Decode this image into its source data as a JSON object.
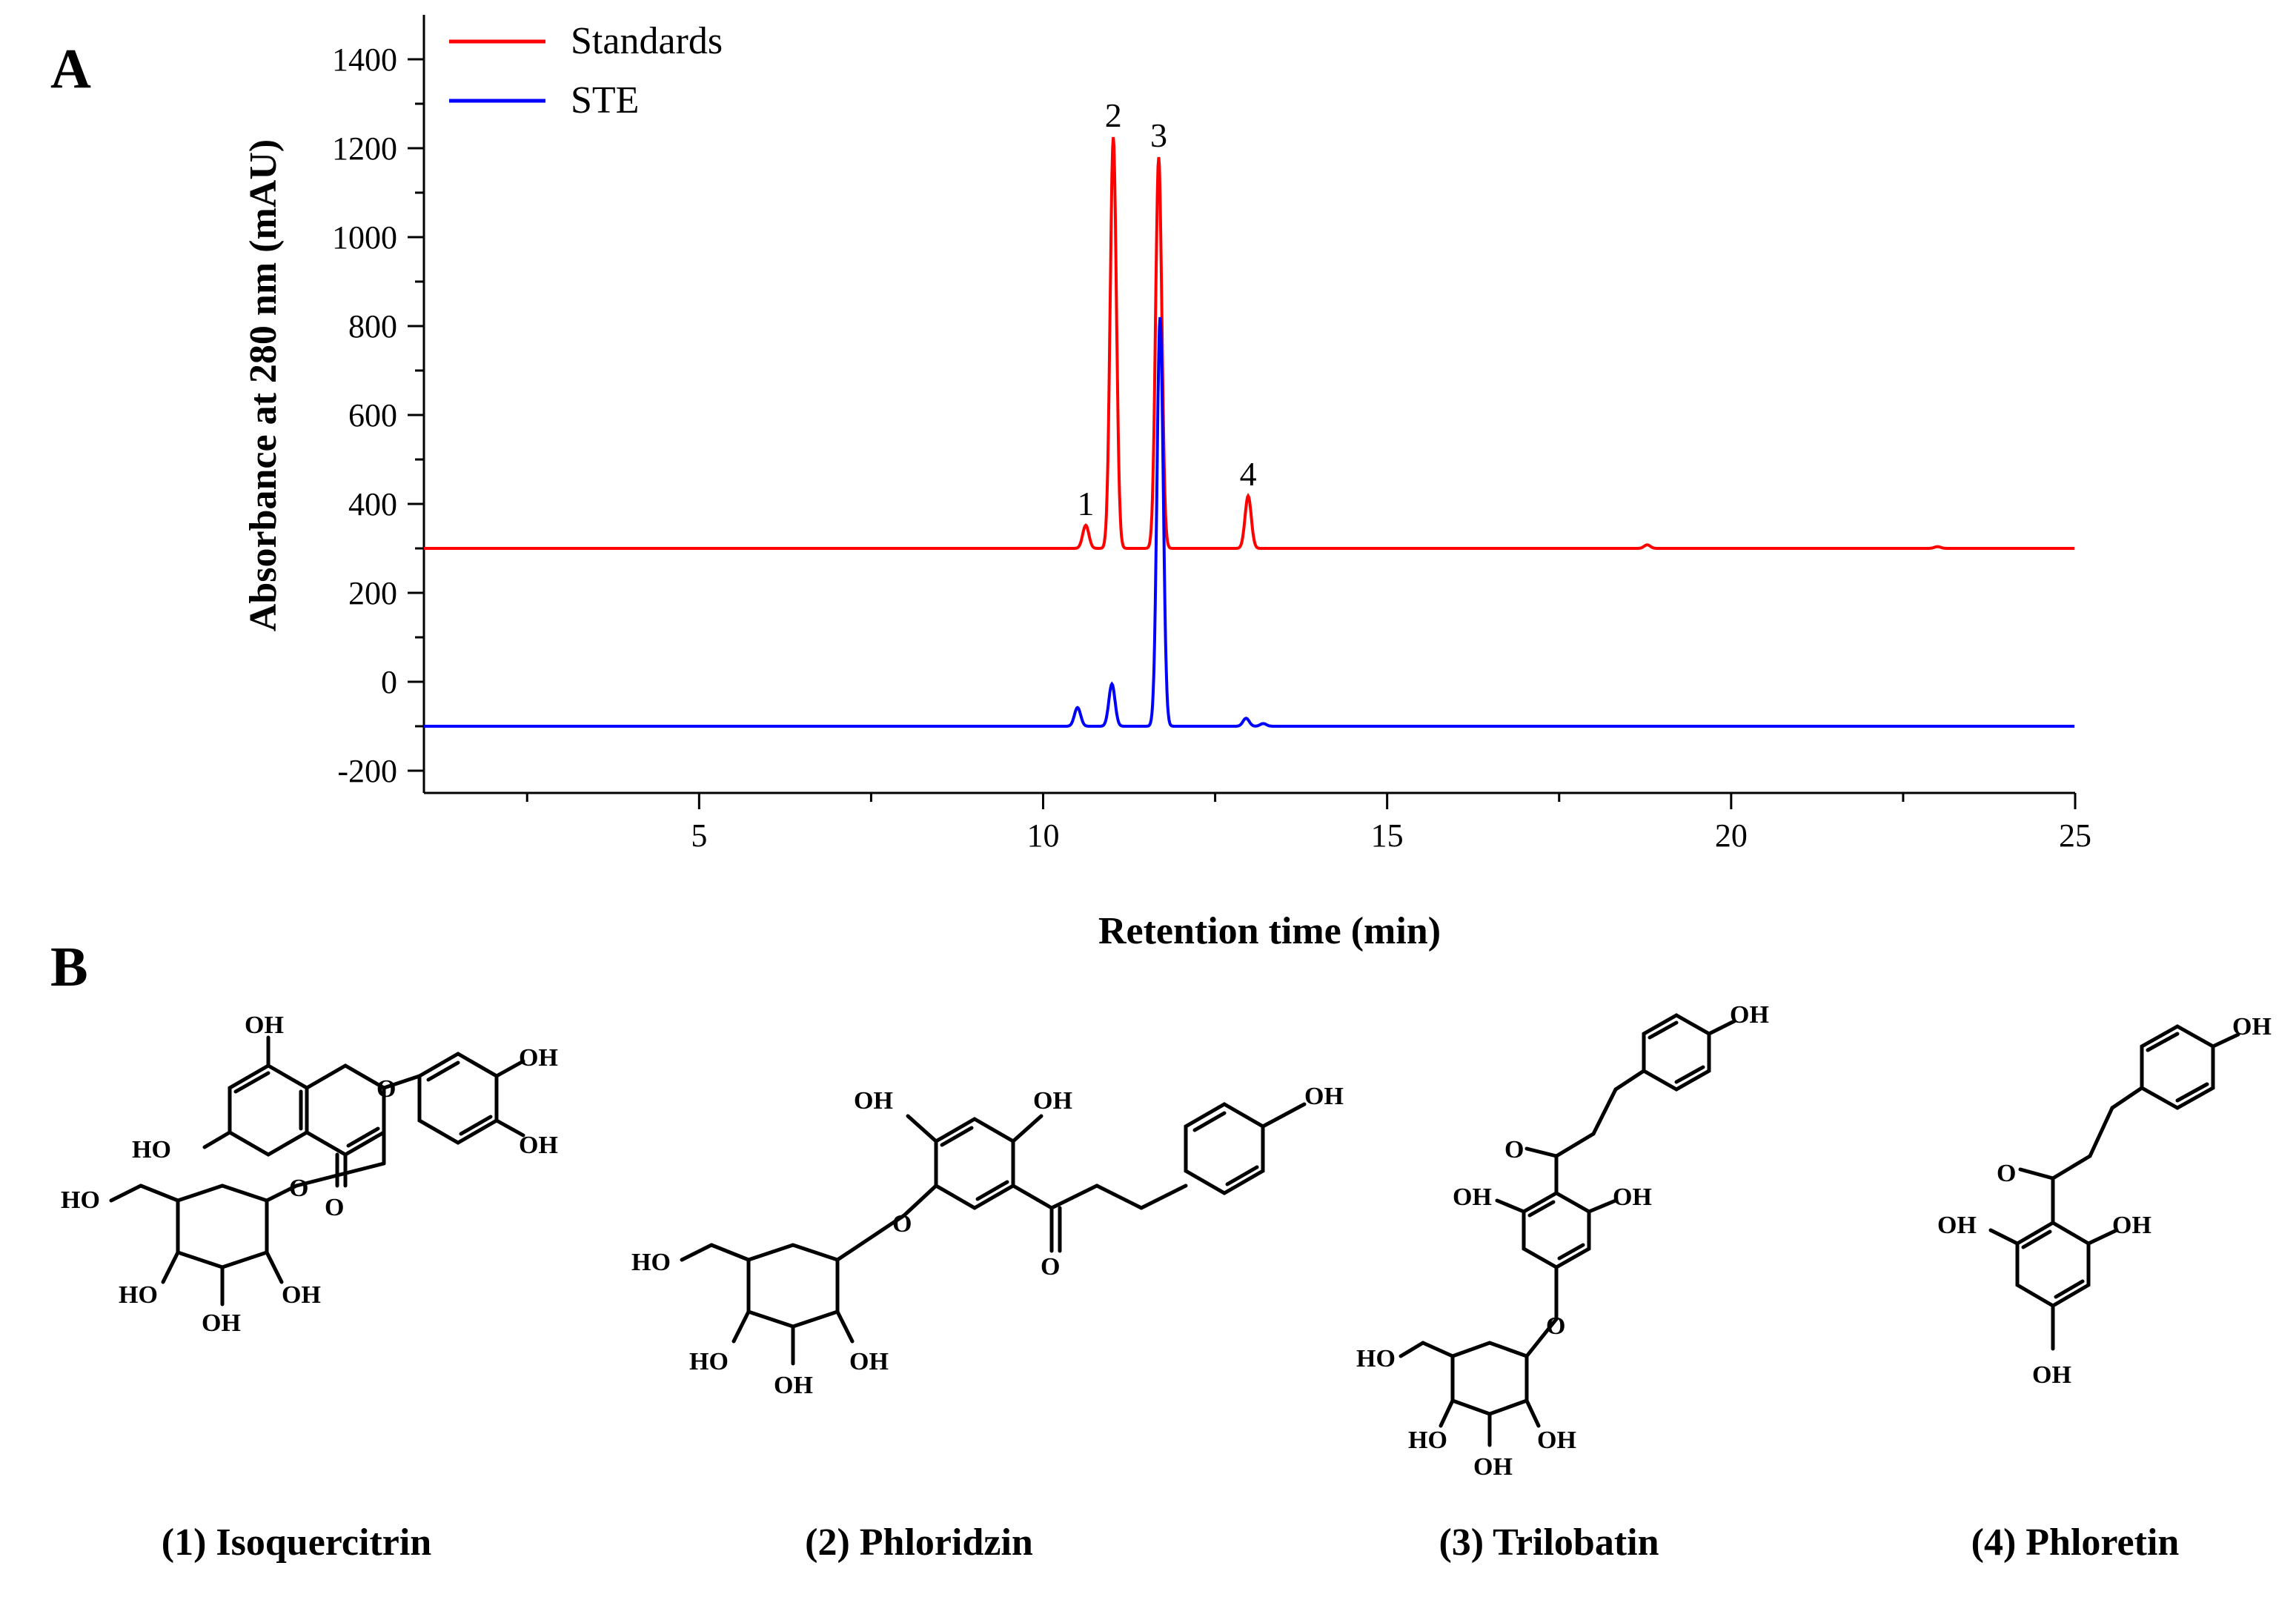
{
  "panels": {
    "a": "A",
    "b": "B"
  },
  "chart_data": {
    "type": "line",
    "title": "",
    "xlabel": "Retention time (min)",
    "ylabel": "Absorbance at 280 nm (mAU)",
    "xlim": [
      1,
      25
    ],
    "ylim": [
      -250,
      1500
    ],
    "x_ticks": [
      5,
      10,
      15,
      20,
      25
    ],
    "y_ticks": [
      -200,
      0,
      200,
      400,
      600,
      800,
      1000,
      1200,
      1400
    ],
    "grid": false,
    "legend": "top-left",
    "series": [
      {
        "name": "Standards",
        "color": "#ff0000",
        "baseline": 300,
        "peaks": [
          {
            "x": 10.62,
            "y": 352
          },
          {
            "x": 11.02,
            "y": 1225
          },
          {
            "x": 11.68,
            "y": 1180
          },
          {
            "x": 12.98,
            "y": 418
          },
          {
            "x": 18.78,
            "y": 308
          },
          {
            "x": 23.0,
            "y": 304
          }
        ]
      },
      {
        "name": "STE",
        "color": "#0000ff",
        "baseline": -100,
        "peaks": [
          {
            "x": 10.5,
            "y": -58
          },
          {
            "x": 11.0,
            "y": -5
          },
          {
            "x": 11.7,
            "y": 820
          },
          {
            "x": 12.95,
            "y": -82
          },
          {
            "x": 13.2,
            "y": -94
          }
        ]
      }
    ],
    "annotations": [
      {
        "text": "1",
        "x": 10.62,
        "y": 352
      },
      {
        "text": "2",
        "x": 11.02,
        "y": 1225
      },
      {
        "text": "3",
        "x": 11.68,
        "y": 1180
      },
      {
        "text": "4",
        "x": 12.98,
        "y": 418
      }
    ]
  },
  "compounds": [
    {
      "caption": "(1) Isoquercitrin"
    },
    {
      "caption": "(2) Phloridzin"
    },
    {
      "caption": "(3) Trilobatin"
    },
    {
      "caption": "(4) Phloretin"
    }
  ],
  "atoms": {
    "oh": "OH",
    "ho": "HO",
    "o": "O"
  }
}
